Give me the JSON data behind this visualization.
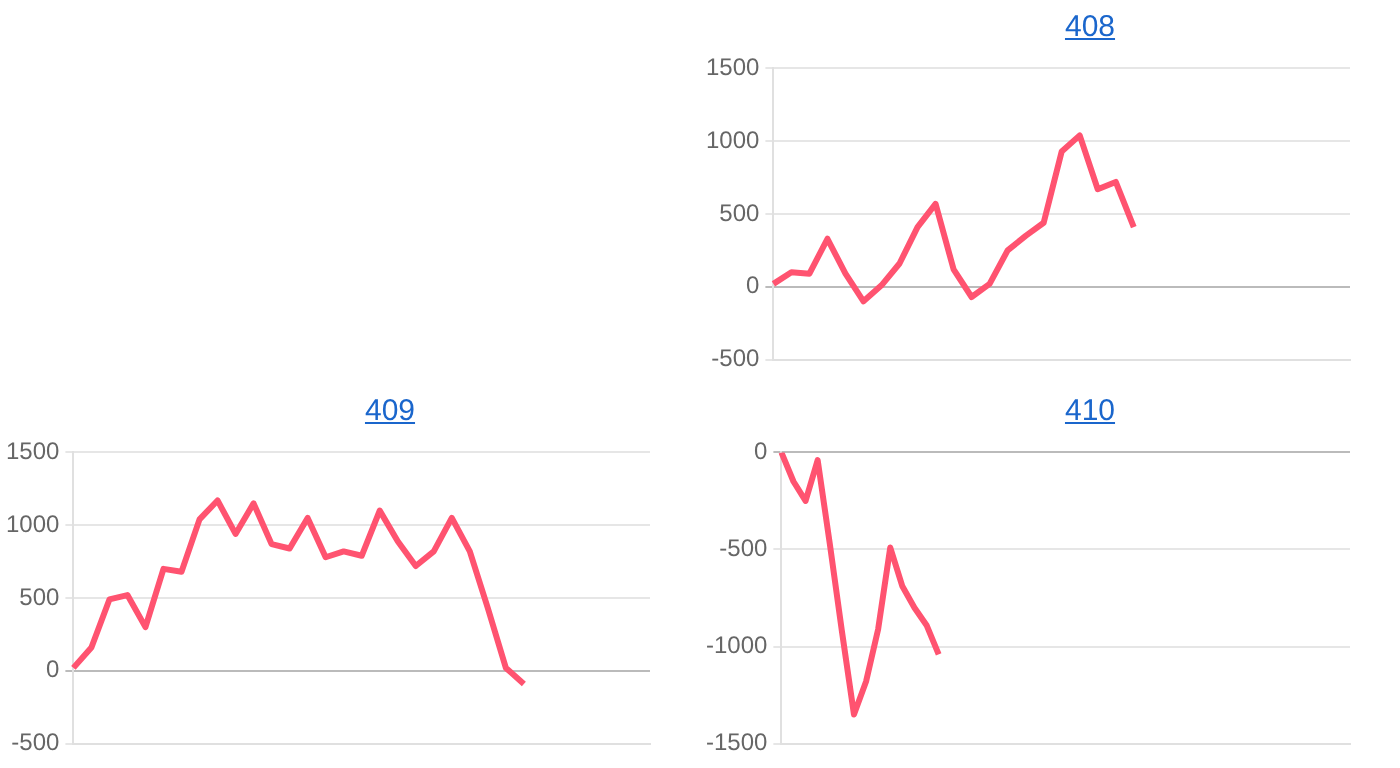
{
  "chart_data": [
    {
      "type": "line",
      "title": "408",
      "categories": [
        null,
        null,
        null,
        null,
        null,
        null,
        null,
        null,
        null,
        null,
        null,
        null,
        null,
        null,
        null,
        null,
        null,
        null,
        null,
        null,
        null,
        null,
        null,
        null,
        null,
        null,
        null,
        null,
        null,
        null,
        null,
        null,
        null
      ],
      "series": [
        {
          "color": "#ff5370",
          "values": [
            20,
            100,
            90,
            330,
            90,
            -100,
            10,
            160,
            410,
            570,
            120,
            -70,
            20,
            250,
            350,
            440,
            930,
            1040,
            670,
            720,
            410,
            null,
            null,
            null,
            null,
            null,
            null,
            null,
            null,
            null,
            null,
            null,
            null
          ]
        }
      ],
      "ylim": [
        -500,
        1500
      ],
      "yticks": [
        -500,
        0,
        500,
        1000,
        1500
      ],
      "grid": "y",
      "tick_labels": "y",
      "marker": "none"
    },
    {
      "type": "line",
      "title": "409",
      "categories": [
        null,
        null,
        null,
        null,
        null,
        null,
        null,
        null,
        null,
        null,
        null,
        null,
        null,
        null,
        null,
        null,
        null,
        null,
        null,
        null,
        null,
        null,
        null,
        null,
        null,
        null,
        null,
        null,
        null,
        null,
        null,
        null,
        null
      ],
      "series": [
        {
          "color": "#ff5370",
          "values": [
            20,
            160,
            490,
            520,
            300,
            700,
            680,
            1040,
            1170,
            940,
            1150,
            870,
            840,
            1050,
            780,
            820,
            790,
            1100,
            890,
            720,
            820,
            1050,
            820,
            430,
            20,
            -90,
            null,
            null,
            null,
            null,
            null,
            null,
            null
          ]
        }
      ],
      "ylim": [
        -500,
        1500
      ],
      "yticks": [
        -500,
        0,
        500,
        1000,
        1500
      ],
      "grid": "y",
      "tick_labels": "y",
      "marker": "none"
    },
    {
      "type": "line",
      "title": "410",
      "categories": [
        null,
        null,
        null,
        null,
        null,
        null,
        null,
        null,
        null,
        null,
        null,
        null,
        null,
        null,
        null,
        null,
        null,
        null,
        null,
        null,
        null,
        null,
        null,
        null,
        null,
        null,
        null,
        null,
        null,
        null,
        null,
        null,
        null,
        null,
        null,
        null,
        null,
        null,
        null,
        null,
        null,
        null,
        null,
        null,
        null,
        null,
        null,
        null
      ],
      "series": [
        {
          "color": "#ff5370",
          "values": [
            0,
            -150,
            -250,
            -40,
            -470,
            -920,
            -1350,
            -1180,
            -910,
            -490,
            -690,
            -800,
            -890,
            -1040,
            null,
            null,
            null,
            null,
            null,
            null,
            null,
            null,
            null,
            null,
            null,
            null,
            null,
            null,
            null,
            null,
            null,
            null,
            null,
            null,
            null,
            null,
            null,
            null,
            null,
            null,
            null,
            null,
            null,
            null,
            null,
            null,
            null,
            null
          ]
        }
      ],
      "ylim": [
        -1500,
        0
      ],
      "yticks": [
        -1500,
        -1000,
        -500,
        0
      ],
      "grid": "y",
      "tick_labels": "y",
      "marker": "none"
    }
  ]
}
